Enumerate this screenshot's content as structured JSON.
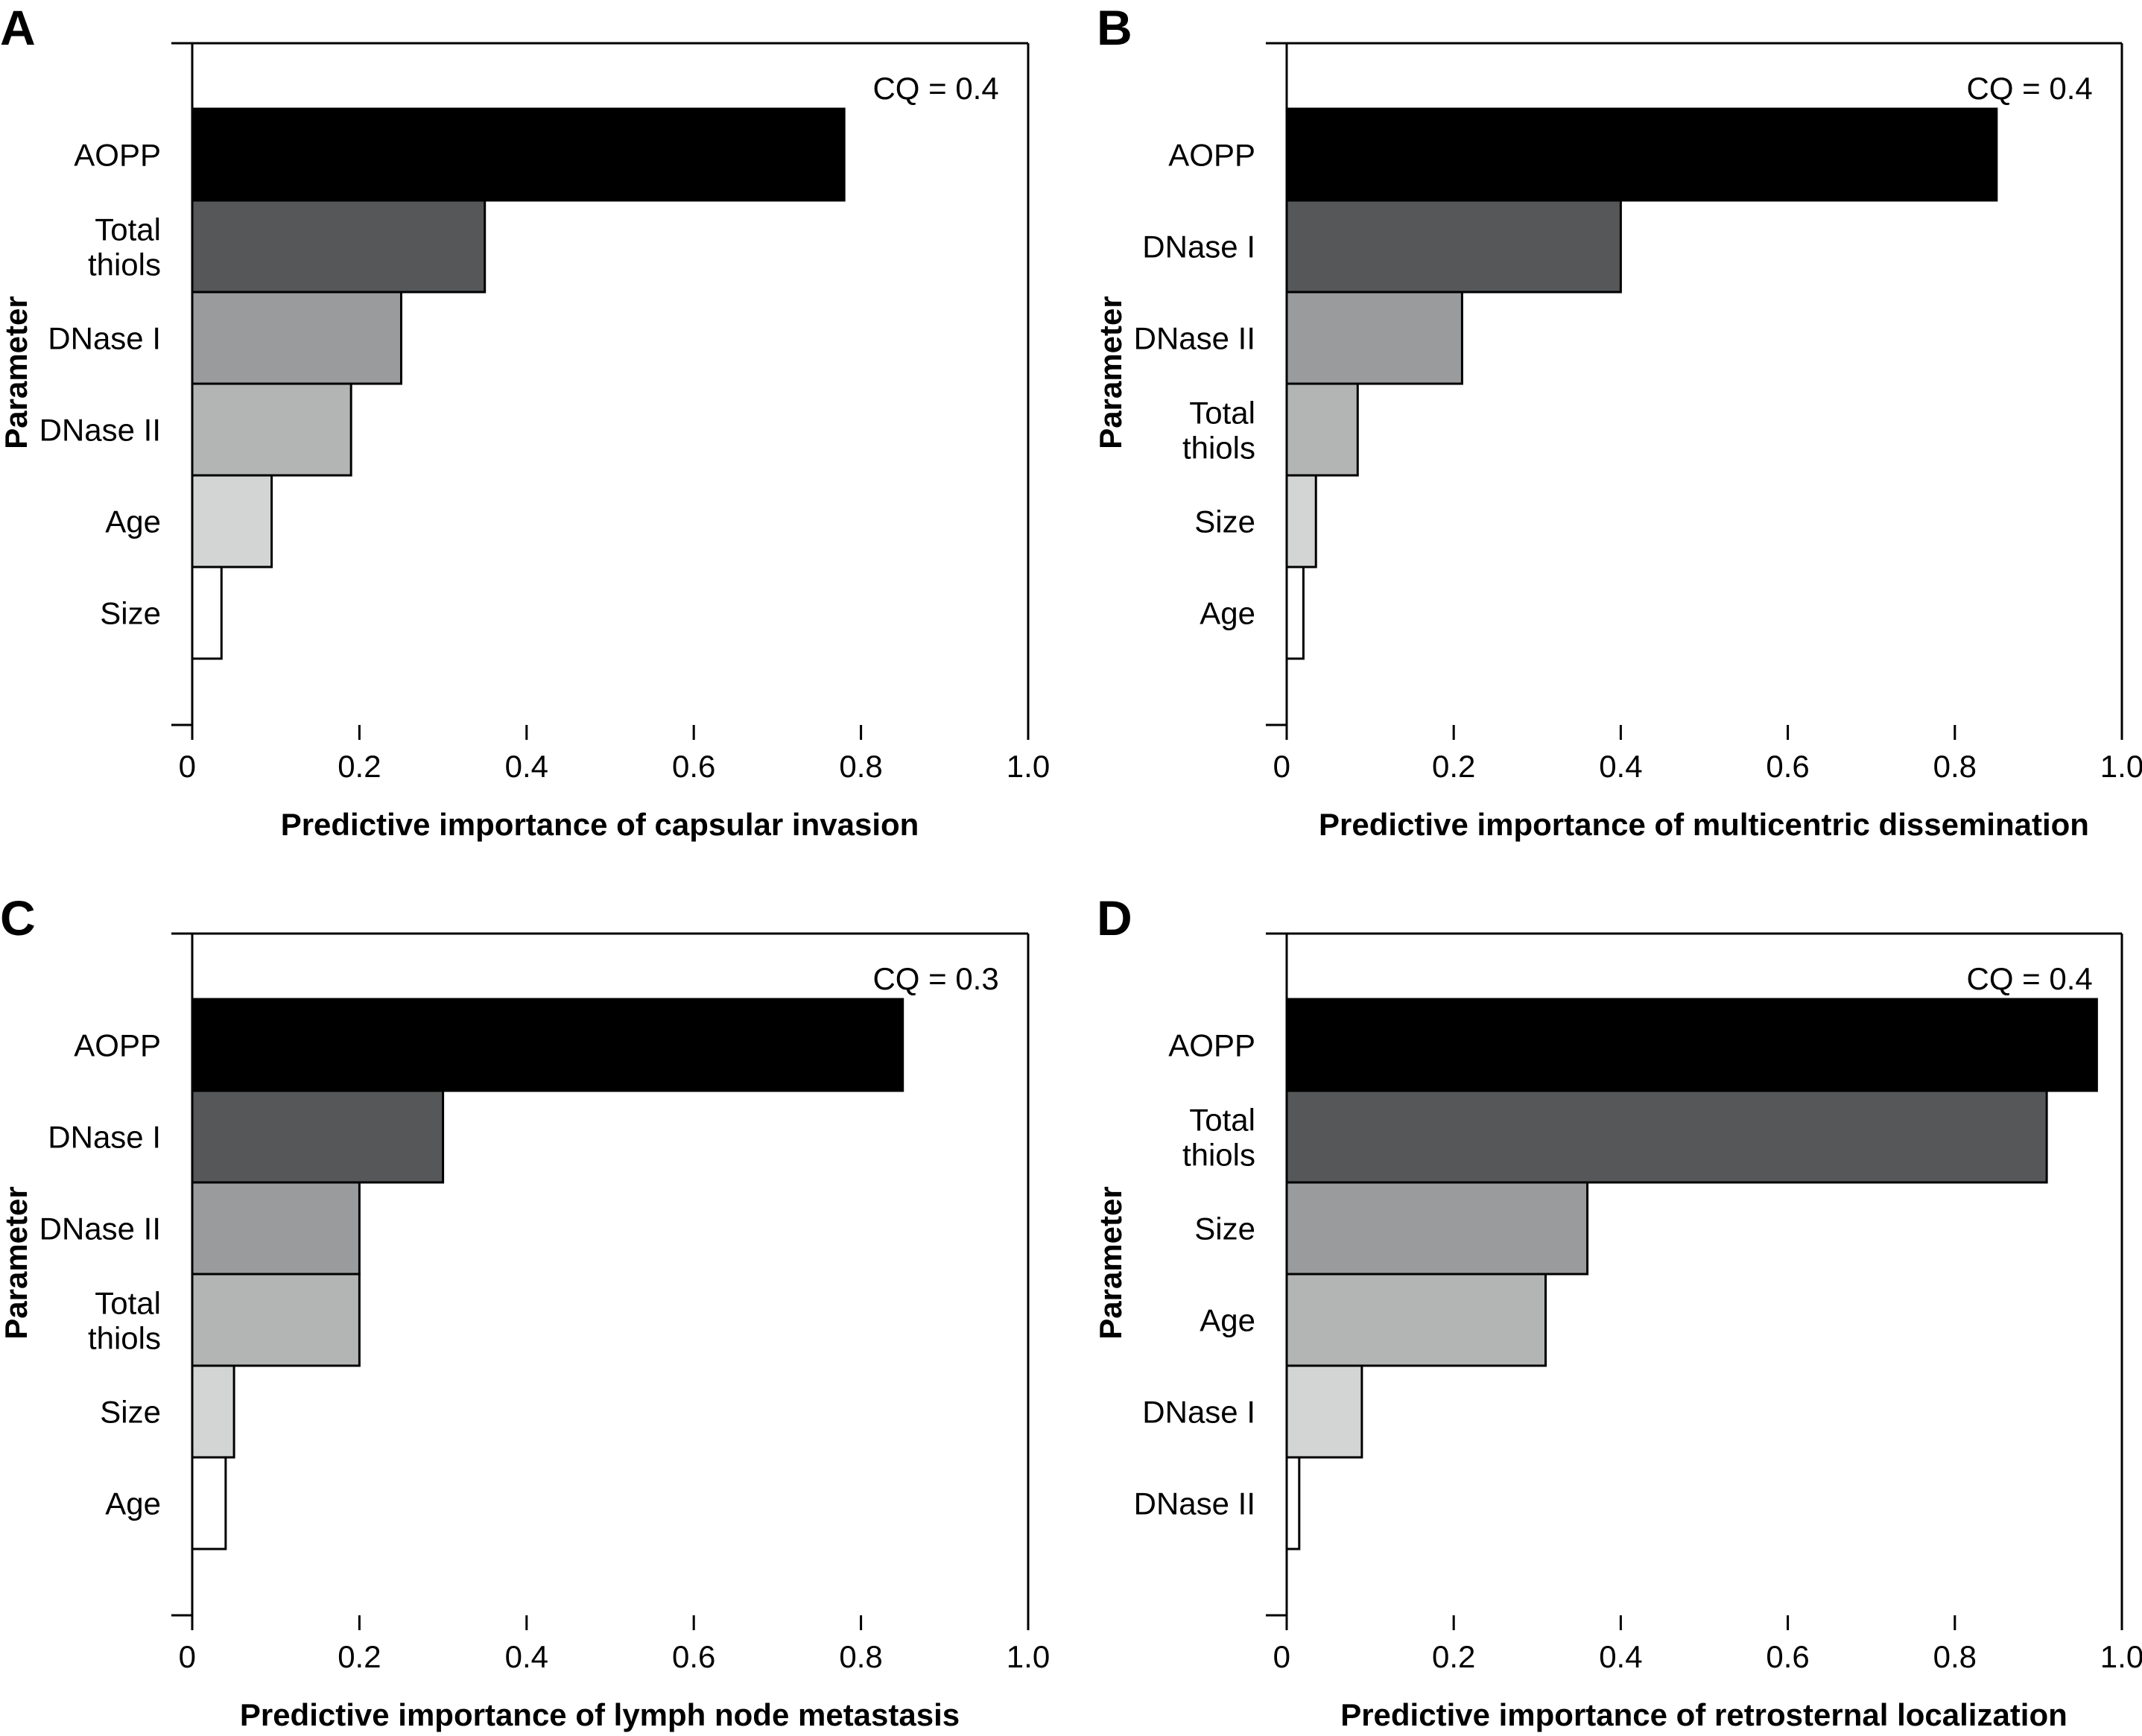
{
  "chart_data": [
    {
      "panel": "A",
      "type": "bar",
      "orientation": "horizontal",
      "categories": [
        "AOPP",
        "Total\nthiols",
        "DNase I",
        "DNase II",
        "Age",
        "Size"
      ],
      "values": [
        0.78,
        0.35,
        0.25,
        0.19,
        0.095,
        0.035
      ],
      "colors": [
        "#000000",
        "#555758",
        "#999b9d",
        "#b3b4b4",
        "#d3d4d4",
        "#ffffff"
      ],
      "annotation": "CQ = 0.4",
      "xlabel": "Predictive importance of capsular invasion",
      "ylabel": "Parameter",
      "xlim": [
        0,
        1.0
      ],
      "xticks": [
        "0",
        "0.2",
        "0.4",
        "0.6",
        "0.8",
        "1.0"
      ],
      "grid": false
    },
    {
      "panel": "B",
      "type": "bar",
      "orientation": "horizontal",
      "categories": [
        "AOPP",
        "DNase I",
        "DNase II",
        "Total\nthiols",
        "Size",
        "Age"
      ],
      "values": [
        0.85,
        0.4,
        0.21,
        0.085,
        0.035,
        0.02
      ],
      "colors": [
        "#000000",
        "#555758",
        "#999b9d",
        "#b3b4b4",
        "#d3d4d4",
        "#ffffff"
      ],
      "annotation": "CQ = 0.4",
      "xlabel": "Predictive importance of multicentric dissemination",
      "ylabel": "Parameter",
      "xlim": [
        0,
        1.0
      ],
      "xticks": [
        "0",
        "0.2",
        "0.4",
        "0.6",
        "0.8",
        "1.0"
      ],
      "grid": false
    },
    {
      "panel": "C",
      "type": "bar",
      "orientation": "horizontal",
      "categories": [
        "AOPP",
        "DNase I",
        "DNase II",
        "Total\nthiols",
        "Size",
        "Age"
      ],
      "values": [
        0.85,
        0.3,
        0.2,
        0.2,
        0.05,
        0.04
      ],
      "colors": [
        "#000000",
        "#555758",
        "#999b9d",
        "#b3b4b4",
        "#d3d4d4",
        "#ffffff"
      ],
      "annotation": "CQ = 0.3",
      "xlabel": "Predictive importance of lymph node metastasis",
      "ylabel": "Parameter",
      "xlim": [
        0,
        1.0
      ],
      "xticks": [
        "0",
        "0.2",
        "0.4",
        "0.6",
        "0.8",
        "1.0"
      ],
      "grid": false
    },
    {
      "panel": "D",
      "type": "bar",
      "orientation": "horizontal",
      "categories": [
        "AOPP",
        "Total\nthiols",
        "Size",
        "Age",
        "DNase I",
        "DNase II"
      ],
      "values": [
        0.97,
        0.91,
        0.36,
        0.31,
        0.09,
        0.015
      ],
      "colors": [
        "#000000",
        "#555758",
        "#999b9d",
        "#b3b4b4",
        "#d3d4d4",
        "#ffffff"
      ],
      "annotation": "CQ = 0.4",
      "xlabel": "Predictive importance of retrosternal localization",
      "ylabel": "Parameter",
      "xlim": [
        0,
        1.0
      ],
      "xticks": [
        "0",
        "0.2",
        "0.4",
        "0.6",
        "0.8",
        "1.0"
      ],
      "grid": false
    }
  ]
}
